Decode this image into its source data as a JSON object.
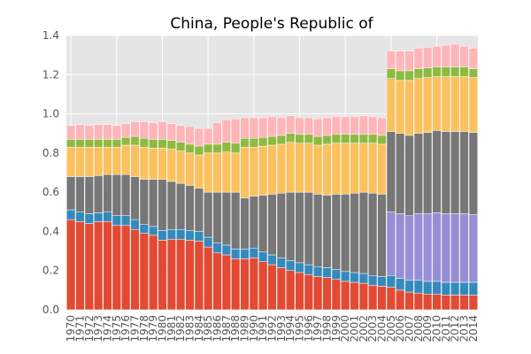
{
  "chart_data": {
    "type": "bar",
    "stacked": true,
    "title": "China, People's Republic of",
    "xlabel": "",
    "ylabel": "",
    "ylim": [
      0,
      1.4
    ],
    "yticks": [
      "0.0",
      "0.2",
      "0.4",
      "0.6",
      "0.8",
      "1.0",
      "1.2",
      "1.4"
    ],
    "grid": true,
    "legend": "none",
    "categories": [
      "1970",
      "1971",
      "1972",
      "1973",
      "1974",
      "1975",
      "1976",
      "1977",
      "1978",
      "1979",
      "1980",
      "1981",
      "1982",
      "1983",
      "1984",
      "1985",
      "1986",
      "1987",
      "1988",
      "1989",
      "1990",
      "1991",
      "1992",
      "1993",
      "1994",
      "1995",
      "1996",
      "1997",
      "1998",
      "1999",
      "2000",
      "2001",
      "2002",
      "2003",
      "2004",
      "2005",
      "2006",
      "2007",
      "2008",
      "2009",
      "2010",
      "2011",
      "2012",
      "2013",
      "2014"
    ],
    "series": [
      {
        "color": "#e24a33",
        "values": [
          0.46,
          0.45,
          0.44,
          0.45,
          0.45,
          0.43,
          0.43,
          0.41,
          0.39,
          0.38,
          0.355,
          0.36,
          0.36,
          0.355,
          0.35,
          0.32,
          0.29,
          0.28,
          0.26,
          0.26,
          0.265,
          0.245,
          0.23,
          0.215,
          0.2,
          0.19,
          0.18,
          0.17,
          0.165,
          0.155,
          0.145,
          0.14,
          0.135,
          0.125,
          0.12,
          0.115,
          0.1,
          0.09,
          0.085,
          0.08,
          0.08,
          0.075,
          0.075,
          0.075,
          0.075
        ]
      },
      {
        "color": "#348abd",
        "values": [
          0.05,
          0.05,
          0.05,
          0.045,
          0.05,
          0.05,
          0.05,
          0.05,
          0.045,
          0.045,
          0.05,
          0.05,
          0.05,
          0.05,
          0.05,
          0.05,
          0.05,
          0.05,
          0.05,
          0.05,
          0.05,
          0.05,
          0.05,
          0.05,
          0.05,
          0.05,
          0.05,
          0.05,
          0.05,
          0.05,
          0.05,
          0.05,
          0.05,
          0.05,
          0.05,
          0.06,
          0.06,
          0.06,
          0.065,
          0.065,
          0.065,
          0.065,
          0.065,
          0.065,
          0.065
        ]
      },
      {
        "color": "#988ed5",
        "values": [
          0,
          0,
          0,
          0,
          0,
          0,
          0,
          0,
          0,
          0,
          0,
          0,
          0,
          0,
          0,
          0,
          0,
          0,
          0,
          0,
          0,
          0,
          0,
          0,
          0,
          0,
          0,
          0,
          0,
          0,
          0,
          0,
          0,
          0,
          0,
          0.325,
          0.33,
          0.33,
          0.34,
          0.345,
          0.35,
          0.35,
          0.35,
          0.35,
          0.345
        ]
      },
      {
        "color": "#777777",
        "values": [
          0.17,
          0.18,
          0.19,
          0.19,
          0.19,
          0.21,
          0.21,
          0.22,
          0.23,
          0.24,
          0.26,
          0.245,
          0.235,
          0.23,
          0.22,
          0.23,
          0.26,
          0.27,
          0.29,
          0.26,
          0.265,
          0.29,
          0.31,
          0.33,
          0.35,
          0.36,
          0.37,
          0.37,
          0.37,
          0.385,
          0.395,
          0.405,
          0.415,
          0.42,
          0.42,
          0.41,
          0.41,
          0.41,
          0.41,
          0.415,
          0.42,
          0.42,
          0.42,
          0.42,
          0.42
        ]
      },
      {
        "color": "#fbc15e",
        "values": [
          0.15,
          0.15,
          0.15,
          0.145,
          0.14,
          0.14,
          0.15,
          0.16,
          0.165,
          0.16,
          0.16,
          0.165,
          0.165,
          0.165,
          0.17,
          0.2,
          0.2,
          0.205,
          0.2,
          0.26,
          0.25,
          0.25,
          0.25,
          0.25,
          0.255,
          0.25,
          0.25,
          0.25,
          0.26,
          0.26,
          0.26,
          0.255,
          0.25,
          0.255,
          0.255,
          0.27,
          0.27,
          0.28,
          0.28,
          0.28,
          0.275,
          0.28,
          0.28,
          0.28,
          0.28
        ]
      },
      {
        "color": "#8eba42",
        "values": [
          0.04,
          0.04,
          0.04,
          0.04,
          0.04,
          0.04,
          0.04,
          0.045,
          0.045,
          0.045,
          0.045,
          0.045,
          0.045,
          0.045,
          0.045,
          0.045,
          0.045,
          0.05,
          0.05,
          0.045,
          0.045,
          0.045,
          0.045,
          0.045,
          0.045,
          0.045,
          0.045,
          0.045,
          0.045,
          0.045,
          0.045,
          0.045,
          0.045,
          0.045,
          0.045,
          0.05,
          0.05,
          0.05,
          0.05,
          0.05,
          0.05,
          0.05,
          0.05,
          0.05,
          0.045
        ]
      },
      {
        "color": "#ffb5b8",
        "values": [
          0.07,
          0.075,
          0.07,
          0.075,
          0.075,
          0.07,
          0.07,
          0.075,
          0.085,
          0.085,
          0.09,
          0.085,
          0.085,
          0.09,
          0.09,
          0.08,
          0.11,
          0.115,
          0.125,
          0.105,
          0.105,
          0.1,
          0.1,
          0.09,
          0.09,
          0.085,
          0.085,
          0.09,
          0.09,
          0.09,
          0.09,
          0.09,
          0.095,
          0.09,
          0.09,
          0.09,
          0.1,
          0.1,
          0.105,
          0.105,
          0.105,
          0.11,
          0.115,
          0.105,
          0.105
        ]
      }
    ]
  }
}
